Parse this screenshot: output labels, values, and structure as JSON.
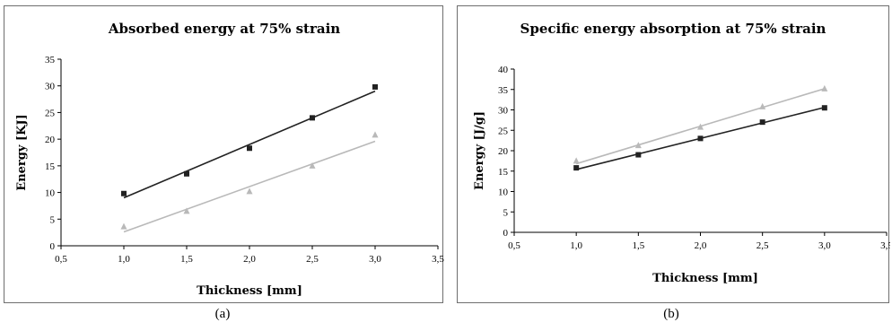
{
  "chart_data": [
    {
      "type": "scatter",
      "title": "Absorbed energy at 75% strain",
      "xlabel": "Thickness [mm]",
      "ylabel": "Energy [KJ]",
      "xlim": [
        0.5,
        3.5
      ],
      "ylim": [
        0,
        35
      ],
      "x_ticks": [
        "0,5",
        "1,0",
        "1,5",
        "2,0",
        "2,5",
        "3,0",
        "3,5"
      ],
      "y_ticks": [
        "0",
        "5",
        "10",
        "15",
        "20",
        "25",
        "30",
        "35"
      ],
      "grid": false,
      "legend": "none",
      "series": [
        {
          "marker": "square",
          "color": "#222222",
          "x": [
            1.0,
            1.5,
            2.0,
            2.5,
            3.0
          ],
          "y": [
            9.8,
            13.5,
            18.3,
            24.0,
            29.8
          ],
          "trend": [
            [
              1.0,
              9.0
            ],
            [
              3.0,
              29.0
            ]
          ]
        },
        {
          "marker": "triangle",
          "color": "#b9b9b9",
          "x": [
            1.0,
            1.5,
            2.0,
            2.5,
            3.0
          ],
          "y": [
            3.6,
            6.5,
            10.2,
            15.0,
            20.8
          ],
          "trend": [
            [
              1.0,
              2.6
            ],
            [
              3.0,
              19.6
            ]
          ]
        }
      ]
    },
    {
      "type": "scatter",
      "title": "Specific energy absorption at 75% strain",
      "xlabel": "Thickness [mm]",
      "ylabel": "Energy [J/g]",
      "xlim": [
        0.5,
        3.5
      ],
      "ylim": [
        0,
        40
      ],
      "x_ticks": [
        "0,5",
        "1,0",
        "1,5",
        "2,0",
        "2,5",
        "3,0",
        "3,5"
      ],
      "y_ticks": [
        "0",
        "5",
        "10",
        "15",
        "20",
        "25",
        "30",
        "35",
        "40"
      ],
      "grid": false,
      "legend": "none",
      "series": [
        {
          "marker": "square",
          "color": "#222222",
          "x": [
            1.0,
            1.5,
            2.0,
            2.5,
            3.0
          ],
          "y": [
            15.8,
            19.0,
            23.0,
            27.0,
            30.5
          ],
          "trend": [
            [
              1.0,
              15.4
            ],
            [
              3.0,
              30.6
            ]
          ]
        },
        {
          "marker": "triangle",
          "color": "#b9b9b9",
          "x": [
            1.0,
            1.5,
            2.0,
            2.5,
            3.0
          ],
          "y": [
            17.5,
            21.3,
            25.8,
            30.8,
            35.2
          ],
          "trend": [
            [
              1.0,
              16.8
            ],
            [
              3.0,
              35.2
            ]
          ]
        }
      ]
    }
  ],
  "captions": [
    "(a)",
    "(b)"
  ]
}
